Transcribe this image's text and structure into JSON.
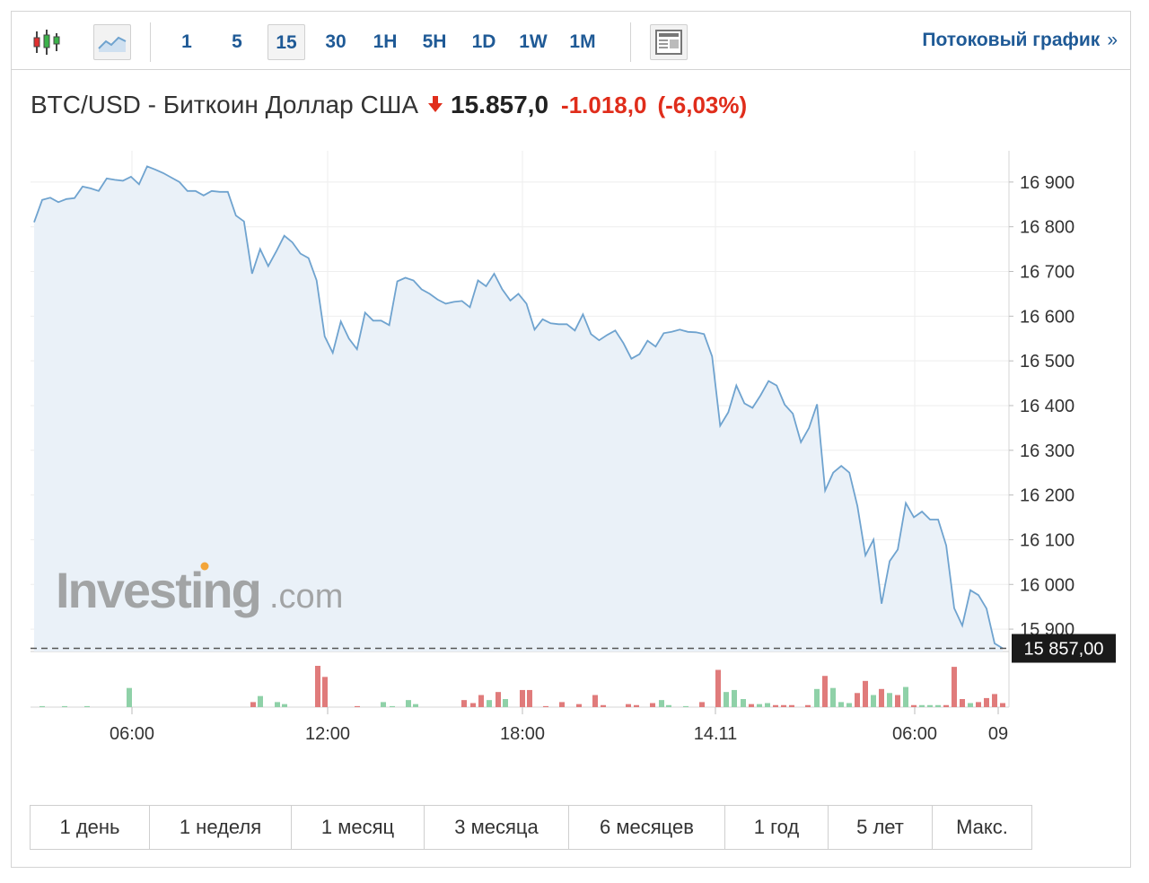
{
  "toolbar": {
    "candle_icon": "candlestick-chart-icon",
    "area_icon": "area-chart-icon",
    "table_icon": "table-layout-icon",
    "timeframes": [
      "1",
      "5",
      "15",
      "30",
      "1H",
      "5H",
      "1D",
      "1W",
      "1M"
    ],
    "active_timeframe": "15",
    "stream_label": "Потоковый график",
    "stream_arrow": "»"
  },
  "quote": {
    "name": "BTC/USD - Биткоин Доллар США",
    "direction": "down",
    "price": "15.857,0",
    "change": "-1.018,0",
    "change_pct": "(-6,03%)",
    "down_color": "#e02d1b"
  },
  "watermark": {
    "brand": "Investing",
    "suffix": ".com"
  },
  "chart_data": {
    "type": "area",
    "ylim": [
      15850,
      16970
    ],
    "y_ticks": [
      15900,
      16000,
      16100,
      16200,
      16300,
      16400,
      16500,
      16600,
      16700,
      16800,
      16900
    ],
    "y_tick_labels": [
      "15 900",
      "16 000",
      "16 100",
      "16 200",
      "16 300",
      "16 400",
      "16 500",
      "16 600",
      "16 700",
      "16 800",
      "16 900"
    ],
    "x_tick_labels": [
      "06:00",
      "12:00",
      "18:00",
      "14.11",
      "06:00",
      "09"
    ],
    "current_value_label": "15 857,00",
    "current_value": 15857,
    "line_color": "#6fa3cf",
    "fill_color": "#eaf1f8",
    "grid": true,
    "series": [
      {
        "values": [
          16810,
          16860,
          16865,
          16855,
          16862,
          16864,
          16890,
          16886,
          16880,
          16908,
          16905,
          16903,
          16912,
          16895,
          16935,
          16928,
          16920,
          16910,
          16900,
          16880,
          16880,
          16870,
          16880,
          16878,
          16878,
          16825,
          16812,
          16695,
          16750,
          16712,
          16745,
          16780,
          16765,
          16740,
          16730,
          16680,
          16555,
          16518,
          16588,
          16550,
          16526,
          16608,
          16590,
          16590,
          16580,
          16678,
          16686,
          16680,
          16660,
          16650,
          16637,
          16628,
          16632,
          16634,
          16620,
          16680,
          16667,
          16695,
          16660,
          16635,
          16650,
          16628,
          16570,
          16593,
          16584,
          16582,
          16582,
          16568,
          16604,
          16560,
          16546,
          16558,
          16568,
          16540,
          16505,
          16515,
          16545,
          16532,
          16562,
          16565,
          16570,
          16565,
          16564,
          16560,
          16510,
          16355,
          16385,
          16445,
          16405,
          16395,
          16423,
          16455,
          16445,
          16402,
          16382,
          16318,
          16350,
          16403,
          16210,
          16250,
          16265,
          16250,
          16175,
          16065,
          16100,
          15957,
          16052,
          16078,
          16182,
          16150,
          16163,
          16145,
          16145,
          16087,
          15947,
          15908,
          15987,
          15976,
          15946,
          15868,
          15857
        ]
      }
    ],
    "volume": {
      "colors": {
        "up": "#8fd1a8",
        "down": "#e07b7b"
      },
      "bars": [
        {
          "x": 47,
          "v": 1,
          "dir": "up"
        },
        {
          "x": 72,
          "v": 1,
          "dir": "up"
        },
        {
          "x": 97,
          "v": 1,
          "dir": "up"
        },
        {
          "x": 144,
          "v": 19,
          "dir": "up"
        },
        {
          "x": 282,
          "v": 5,
          "dir": "down"
        },
        {
          "x": 290,
          "v": 11,
          "dir": "up"
        },
        {
          "x": 309,
          "v": 5,
          "dir": "up"
        },
        {
          "x": 317,
          "v": 3,
          "dir": "up"
        },
        {
          "x": 354,
          "v": 41,
          "dir": "down"
        },
        {
          "x": 362,
          "v": 30,
          "dir": "down"
        },
        {
          "x": 398,
          "v": 1,
          "dir": "down"
        },
        {
          "x": 427,
          "v": 5,
          "dir": "up"
        },
        {
          "x": 437,
          "v": 1,
          "dir": "up"
        },
        {
          "x": 455,
          "v": 7,
          "dir": "up"
        },
        {
          "x": 463,
          "v": 3,
          "dir": "up"
        },
        {
          "x": 517,
          "v": 7,
          "dir": "down"
        },
        {
          "x": 527,
          "v": 4,
          "dir": "down"
        },
        {
          "x": 536,
          "v": 12,
          "dir": "down"
        },
        {
          "x": 545,
          "v": 7,
          "dir": "up"
        },
        {
          "x": 555,
          "v": 15,
          "dir": "down"
        },
        {
          "x": 563,
          "v": 8,
          "dir": "up"
        },
        {
          "x": 582,
          "v": 17,
          "dir": "down"
        },
        {
          "x": 590,
          "v": 17,
          "dir": "down"
        },
        {
          "x": 608,
          "v": 1,
          "dir": "down"
        },
        {
          "x": 626,
          "v": 5,
          "dir": "down"
        },
        {
          "x": 645,
          "v": 3,
          "dir": "down"
        },
        {
          "x": 663,
          "v": 12,
          "dir": "down"
        },
        {
          "x": 672,
          "v": 2,
          "dir": "down"
        },
        {
          "x": 700,
          "v": 3,
          "dir": "down"
        },
        {
          "x": 709,
          "v": 2,
          "dir": "down"
        },
        {
          "x": 727,
          "v": 4,
          "dir": "down"
        },
        {
          "x": 737,
          "v": 7,
          "dir": "up"
        },
        {
          "x": 745,
          "v": 2,
          "dir": "up"
        },
        {
          "x": 764,
          "v": 1,
          "dir": "up"
        },
        {
          "x": 782,
          "v": 5,
          "dir": "down"
        },
        {
          "x": 800,
          "v": 37,
          "dir": "down"
        },
        {
          "x": 809,
          "v": 15,
          "dir": "up"
        },
        {
          "x": 818,
          "v": 17,
          "dir": "up"
        },
        {
          "x": 828,
          "v": 8,
          "dir": "up"
        },
        {
          "x": 837,
          "v": 3,
          "dir": "down"
        },
        {
          "x": 846,
          "v": 3,
          "dir": "up"
        },
        {
          "x": 855,
          "v": 4,
          "dir": "up"
        },
        {
          "x": 864,
          "v": 2,
          "dir": "down"
        },
        {
          "x": 873,
          "v": 2,
          "dir": "down"
        },
        {
          "x": 882,
          "v": 2,
          "dir": "down"
        },
        {
          "x": 900,
          "v": 2,
          "dir": "down"
        },
        {
          "x": 910,
          "v": 18,
          "dir": "up"
        },
        {
          "x": 919,
          "v": 31,
          "dir": "down"
        },
        {
          "x": 928,
          "v": 19,
          "dir": "up"
        },
        {
          "x": 937,
          "v": 5,
          "dir": "up"
        },
        {
          "x": 946,
          "v": 4,
          "dir": "up"
        },
        {
          "x": 955,
          "v": 14,
          "dir": "down"
        },
        {
          "x": 964,
          "v": 26,
          "dir": "down"
        },
        {
          "x": 973,
          "v": 12,
          "dir": "up"
        },
        {
          "x": 982,
          "v": 18,
          "dir": "down"
        },
        {
          "x": 991,
          "v": 14,
          "dir": "up"
        },
        {
          "x": 1000,
          "v": 12,
          "dir": "down"
        },
        {
          "x": 1009,
          "v": 20,
          "dir": "up"
        },
        {
          "x": 1018,
          "v": 2,
          "dir": "down"
        },
        {
          "x": 1027,
          "v": 2,
          "dir": "up"
        },
        {
          "x": 1036,
          "v": 2,
          "dir": "up"
        },
        {
          "x": 1045,
          "v": 2,
          "dir": "up"
        },
        {
          "x": 1054,
          "v": 2,
          "dir": "down"
        },
        {
          "x": 1063,
          "v": 40,
          "dir": "down"
        },
        {
          "x": 1072,
          "v": 8,
          "dir": "down"
        },
        {
          "x": 1081,
          "v": 4,
          "dir": "up"
        },
        {
          "x": 1090,
          "v": 5,
          "dir": "down"
        },
        {
          "x": 1099,
          "v": 9,
          "dir": "down"
        },
        {
          "x": 1108,
          "v": 13,
          "dir": "down"
        },
        {
          "x": 1117,
          "v": 4,
          "dir": "down"
        }
      ]
    }
  },
  "ranges": [
    "1 день",
    "1 неделя",
    "1 месяц",
    "3 месяца",
    "6 месяцев",
    "1 год",
    "5 лет",
    "Макс."
  ]
}
